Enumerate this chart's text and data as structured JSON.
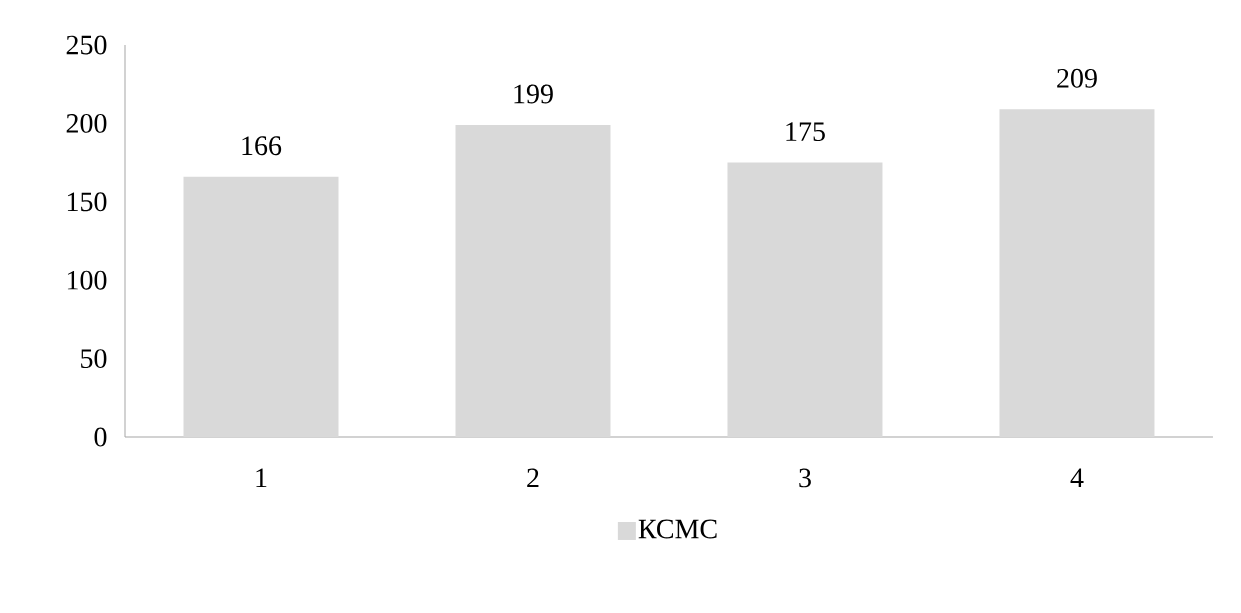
{
  "chart_data": {
    "type": "bar",
    "categories": [
      "1",
      "2",
      "3",
      "4"
    ],
    "series": [
      {
        "name": "КСМС",
        "color": "#d9d9d9",
        "values": [
          166,
          199,
          175,
          209
        ]
      }
    ],
    "ylim": [
      0,
      250
    ],
    "yticks": [
      0,
      50,
      100,
      150,
      200,
      250
    ],
    "data_labels": true,
    "grid": false,
    "legend": "bottom"
  }
}
